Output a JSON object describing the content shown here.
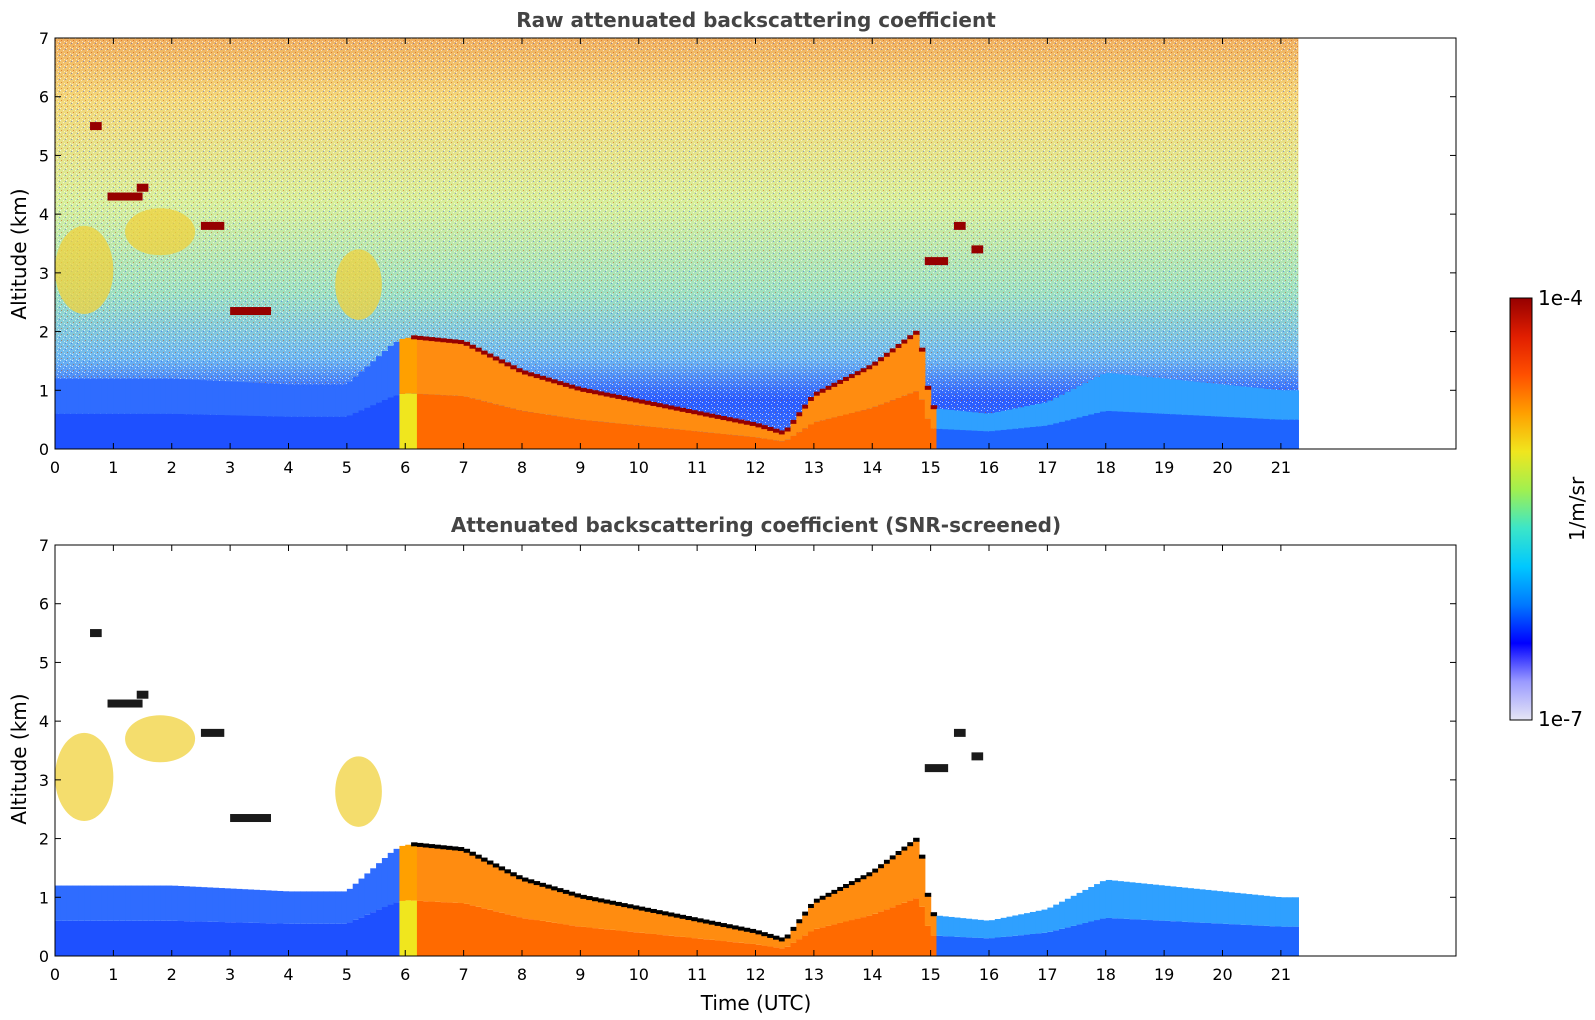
{
  "chart_data": [
    {
      "type": "heatmap",
      "title": "Raw attenuated backscattering coefficient",
      "xlabel": "",
      "ylabel": "Altitude (km)",
      "xlim": [
        0,
        24
      ],
      "ylim": [
        0,
        7
      ],
      "xticks": [
        "0",
        "1",
        "2",
        "3",
        "4",
        "5",
        "6",
        "7",
        "8",
        "9",
        "10",
        "11",
        "12",
        "13",
        "14",
        "15",
        "16",
        "17",
        "18",
        "19",
        "20",
        "21"
      ],
      "yticks": [
        "0",
        "1",
        "2",
        "3",
        "4",
        "5",
        "6",
        "7"
      ],
      "data_extent_hours": 21.3,
      "screened": false
    },
    {
      "type": "heatmap",
      "title": "Attenuated backscattering coefficient (SNR-screened)",
      "xlabel": "Time (UTC)",
      "ylabel": "Altitude (km)",
      "xlim": [
        0,
        24
      ],
      "ylim": [
        0,
        7
      ],
      "xticks": [
        "0",
        "1",
        "2",
        "3",
        "4",
        "5",
        "6",
        "7",
        "8",
        "9",
        "10",
        "11",
        "12",
        "13",
        "14",
        "15",
        "16",
        "17",
        "18",
        "19",
        "20",
        "21"
      ],
      "yticks": [
        "0",
        "1",
        "2",
        "3",
        "4",
        "5",
        "6",
        "7"
      ],
      "data_extent_hours": 21.3,
      "screened": true
    }
  ],
  "colorbar": {
    "label": "1/m/sr",
    "max_label": "1e-4",
    "min_label": "1e-7",
    "scale": "log",
    "colormap": [
      "#e6e6f5",
      "#9a9aff",
      "#0000ff",
      "#0078ff",
      "#00c8ff",
      "#3ce6c8",
      "#a0f050",
      "#f0e61e",
      "#ffa000",
      "#ff5000",
      "#e11e00",
      "#960000"
    ]
  },
  "layer_profile": {
    "time_hours": [
      0,
      1,
      2,
      3,
      4,
      5,
      5.8,
      6.0,
      7,
      8,
      9,
      10,
      11,
      12,
      12.5,
      13,
      14,
      14.8,
      15,
      16,
      17,
      18,
      19,
      20,
      21,
      21.3
    ],
    "boundary_layer_top_km": [
      1.2,
      1.2,
      1.2,
      1.15,
      1.1,
      1.1,
      1.8,
      1.9,
      1.8,
      1.3,
      1.0,
      0.8,
      0.6,
      0.4,
      0.25,
      0.9,
      1.4,
      2.0,
      0.7,
      0.6,
      0.8,
      1.3,
      1.2,
      1.1,
      1.0,
      1.0
    ]
  },
  "cloud_layers": [
    {
      "t0": 0.9,
      "t1": 1.5,
      "alt_km": 4.3
    },
    {
      "t0": 1.4,
      "t1": 1.6,
      "alt_km": 4.45
    },
    {
      "t0": 2.5,
      "t1": 2.9,
      "alt_km": 3.8
    },
    {
      "t0": 3.0,
      "t1": 3.7,
      "alt_km": 2.35
    },
    {
      "t0": 0.6,
      "t1": 0.8,
      "alt_km": 5.5
    },
    {
      "t0": 14.9,
      "t1": 15.3,
      "alt_km": 3.2
    },
    {
      "t0": 15.4,
      "t1": 15.6,
      "alt_km": 3.8
    },
    {
      "t0": 15.7,
      "t1": 15.9,
      "alt_km": 3.4
    }
  ],
  "aerosol_plumes": [
    {
      "t0": 0.0,
      "t1": 1.0,
      "alt_lo_km": 2.3,
      "alt_hi_km": 3.8
    },
    {
      "t0": 1.2,
      "t1": 2.4,
      "alt_lo_km": 3.3,
      "alt_hi_km": 4.1
    },
    {
      "t0": 4.8,
      "t1": 5.6,
      "alt_lo_km": 2.2,
      "alt_hi_km": 3.4
    }
  ]
}
